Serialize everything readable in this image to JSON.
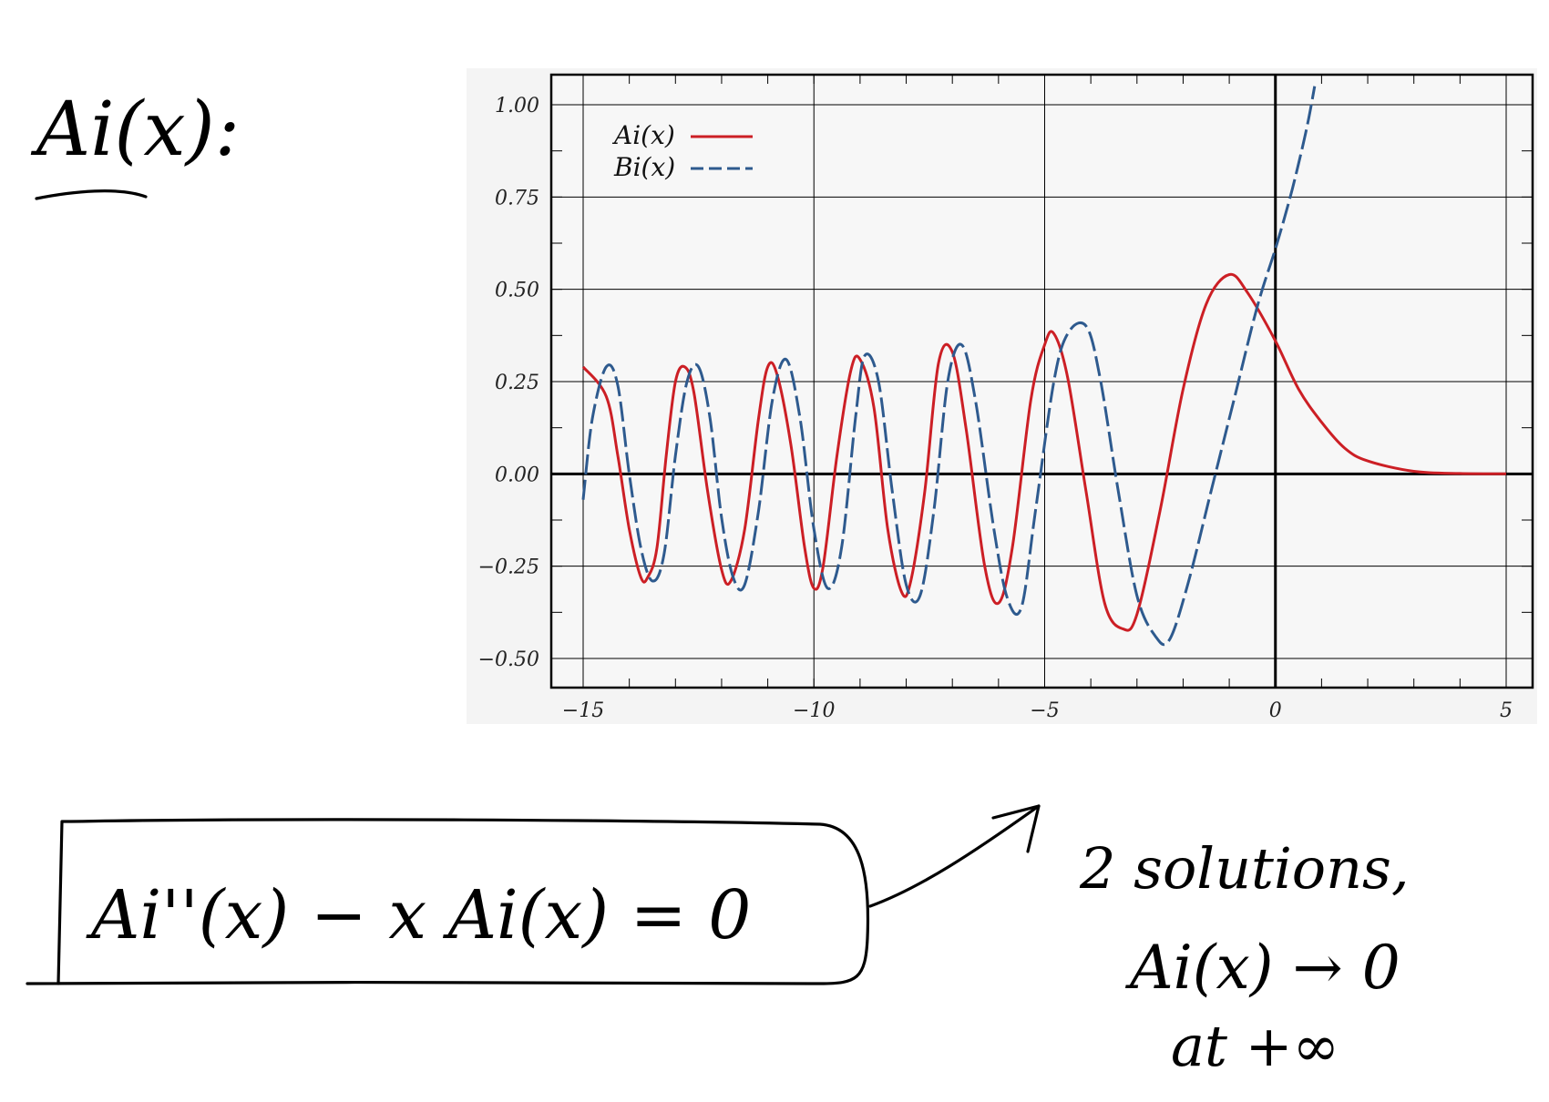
{
  "handwritten": {
    "heading": "Ai(x):",
    "equation": "Ai''(x) − x Ai(x) = 0",
    "note_line1": "2 solutions,",
    "note_line2": "Ai(x) → 0",
    "note_line3": "at +∞"
  },
  "colors": {
    "ai": "#cc1f25",
    "bi": "#2e5a8e",
    "axis": "#000000",
    "grid": "#000000",
    "background": "#f4f4f4"
  },
  "chart_data": {
    "type": "line",
    "title": "",
    "xlabel": "",
    "ylabel": "",
    "xlim": [
      -15,
      5
    ],
    "ylim": [
      -0.5,
      1.0
    ],
    "x_ticks": [
      -15,
      -10,
      -5,
      0,
      5
    ],
    "x_tick_labels": [
      "−15",
      "−10",
      "−5",
      "0",
      "5"
    ],
    "y_ticks": [
      1.0,
      0.75,
      0.5,
      0.25,
      0.0,
      -0.25,
      -0.5
    ],
    "y_tick_labels": [
      "1.00",
      "0.75",
      "0.50",
      "0.25",
      "0.00",
      "−0.25",
      "−0.50"
    ],
    "grid": true,
    "legend_position": "top-left",
    "series": [
      {
        "name": "Ai(x)",
        "style": "solid",
        "color": "#cc1f25",
        "points": [
          [
            -15,
            0.29
          ],
          [
            -14.5,
            0.21
          ],
          [
            -14.25,
            0.05
          ],
          [
            -14.0,
            -0.15
          ],
          [
            -13.75,
            -0.28
          ],
          [
            -13.6,
            -0.28
          ],
          [
            -13.4,
            -0.2
          ],
          [
            -13.2,
            0.05
          ],
          [
            -13.0,
            0.25
          ],
          [
            -12.8,
            0.29
          ],
          [
            -12.6,
            0.22
          ],
          [
            -12.3,
            -0.05
          ],
          [
            -12.0,
            -0.26
          ],
          [
            -11.8,
            -0.29
          ],
          [
            -11.5,
            -0.15
          ],
          [
            -11.2,
            0.15
          ],
          [
            -11.0,
            0.29
          ],
          [
            -10.8,
            0.27
          ],
          [
            -10.5,
            0.08
          ],
          [
            -10.2,
            -0.2
          ],
          [
            -10.0,
            -0.31
          ],
          [
            -9.8,
            -0.25
          ],
          [
            -9.5,
            0.05
          ],
          [
            -9.2,
            0.28
          ],
          [
            -9.0,
            0.31
          ],
          [
            -8.7,
            0.18
          ],
          [
            -8.4,
            -0.15
          ],
          [
            -8.1,
            -0.32
          ],
          [
            -7.9,
            -0.29
          ],
          [
            -7.6,
            -0.05
          ],
          [
            -7.3,
            0.3
          ],
          [
            -7.0,
            0.33
          ],
          [
            -6.7,
            0.12
          ],
          [
            -6.3,
            -0.25
          ],
          [
            -6.0,
            -0.35
          ],
          [
            -5.7,
            -0.2
          ],
          [
            -5.3,
            0.2
          ],
          [
            -5.0,
            0.35
          ],
          [
            -4.8,
            0.38
          ],
          [
            -4.5,
            0.26
          ],
          [
            -4.1,
            -0.05
          ],
          [
            -3.7,
            -0.35
          ],
          [
            -3.3,
            -0.42
          ],
          [
            -3.0,
            -0.38
          ],
          [
            -2.5,
            -0.1
          ],
          [
            -2.0,
            0.23
          ],
          [
            -1.5,
            0.46
          ],
          [
            -1.0,
            0.54
          ],
          [
            -0.6,
            0.49
          ],
          [
            0.0,
            0.36
          ],
          [
            0.5,
            0.23
          ],
          [
            1.0,
            0.14
          ],
          [
            1.5,
            0.07
          ],
          [
            2.0,
            0.035
          ],
          [
            3.0,
            0.007
          ],
          [
            4.0,
            0.001
          ],
          [
            5.0,
            0.0001
          ]
        ]
      },
      {
        "name": "Bi(x)",
        "style": "dashed",
        "color": "#2e5a8e",
        "points": [
          [
            -15,
            -0.07
          ],
          [
            -14.8,
            0.15
          ],
          [
            -14.5,
            0.29
          ],
          [
            -14.25,
            0.24
          ],
          [
            -14.0,
            0.0
          ],
          [
            -13.75,
            -0.2
          ],
          [
            -13.5,
            -0.29
          ],
          [
            -13.25,
            -0.22
          ],
          [
            -13.0,
            0.05
          ],
          [
            -12.75,
            0.25
          ],
          [
            -12.5,
            0.29
          ],
          [
            -12.25,
            0.15
          ],
          [
            -12.0,
            -0.12
          ],
          [
            -11.75,
            -0.28
          ],
          [
            -11.5,
            -0.3
          ],
          [
            -11.2,
            -0.1
          ],
          [
            -10.9,
            0.2
          ],
          [
            -10.6,
            0.31
          ],
          [
            -10.3,
            0.15
          ],
          [
            -10.0,
            -0.15
          ],
          [
            -9.7,
            -0.31
          ],
          [
            -9.4,
            -0.2
          ],
          [
            -9.1,
            0.15
          ],
          [
            -8.9,
            0.32
          ],
          [
            -8.6,
            0.25
          ],
          [
            -8.3,
            -0.05
          ],
          [
            -8.0,
            -0.3
          ],
          [
            -7.7,
            -0.33
          ],
          [
            -7.4,
            -0.1
          ],
          [
            -7.1,
            0.25
          ],
          [
            -6.8,
            0.35
          ],
          [
            -6.5,
            0.2
          ],
          [
            -6.1,
            -0.15
          ],
          [
            -5.8,
            -0.34
          ],
          [
            -5.5,
            -0.36
          ],
          [
            -5.2,
            -0.1
          ],
          [
            -4.8,
            0.25
          ],
          [
            -4.5,
            0.38
          ],
          [
            -4.1,
            0.4
          ],
          [
            -3.8,
            0.26
          ],
          [
            -3.4,
            -0.05
          ],
          [
            -3.0,
            -0.33
          ],
          [
            -2.6,
            -0.44
          ],
          [
            -2.3,
            -0.45
          ],
          [
            -1.9,
            -0.3
          ],
          [
            -1.4,
            -0.05
          ],
          [
            -0.9,
            0.2
          ],
          [
            -0.4,
            0.45
          ],
          [
            0.0,
            0.61
          ],
          [
            0.3,
            0.74
          ],
          [
            0.5,
            0.84
          ],
          [
            0.7,
            0.95
          ],
          [
            0.85,
            1.05
          ]
        ]
      }
    ]
  }
}
